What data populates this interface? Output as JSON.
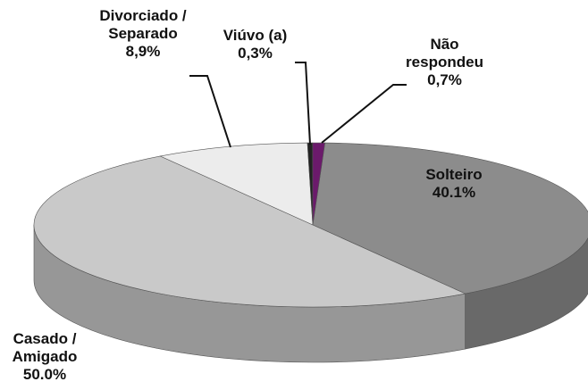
{
  "chart_data": {
    "type": "pie",
    "categories": [
      "Solteiro",
      "Casado / Amigado",
      "Divorciado / Separado",
      "Viúvo (a)",
      "Não respondeu"
    ],
    "values": [
      40.1,
      50.0,
      8.9,
      0.3,
      0.7
    ],
    "value_labels": [
      "40.1%",
      "50.0%",
      "8,9%",
      "0,3%",
      "0,7%"
    ],
    "colors": [
      "#8c8c8c",
      "#c9c9c9",
      "#ececec",
      "#222222",
      "#6b1a6b"
    ]
  }
}
